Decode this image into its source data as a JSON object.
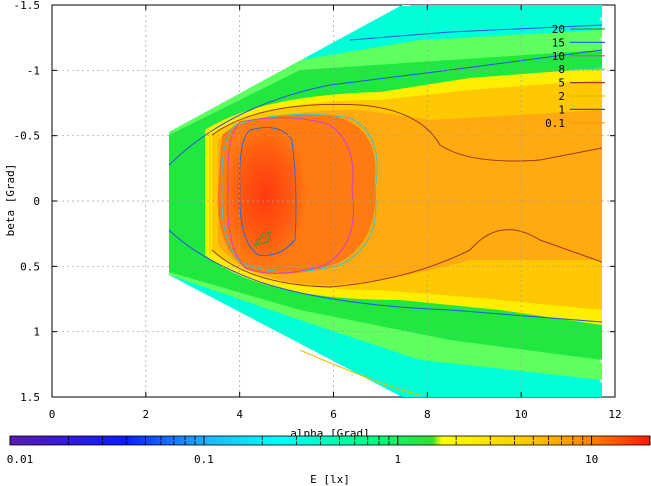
{
  "chart_data": {
    "type": "heatmap",
    "subtype": "contour",
    "title": "",
    "xlabel": "alpha [Grad]",
    "ylabel": "beta [Grad]",
    "xlim": [
      0,
      12
    ],
    "ylim": [
      1.5,
      -1.5
    ],
    "y_axis_inverted": true,
    "x_ticks": [
      "0",
      "2",
      "4",
      "6",
      "8",
      "10",
      "12"
    ],
    "y_ticks": [
      "-1.5",
      "-1",
      "-0.5",
      "0",
      "0.5",
      "1",
      "1.5"
    ],
    "grid": true,
    "colorbar": {
      "label": "E [lx]",
      "scale": "log",
      "range": [
        0.01,
        20
      ],
      "ticks": [
        "0.01",
        "0.1",
        "1",
        "10"
      ]
    },
    "legend_position": "top-right",
    "contour_levels": [
      {
        "label": "20",
        "color": "#3a9a3a"
      },
      {
        "label": "15",
        "color": "#2a6ad8"
      },
      {
        "label": "10",
        "color": "#d040d0"
      },
      {
        "label": "8",
        "color": "#30c8d0"
      },
      {
        "label": "5",
        "color": "#9b3a1a"
      },
      {
        "label": "2",
        "color": "#e0c000"
      },
      {
        "label": "1",
        "color": "#3050e0"
      },
      {
        "label": "0.1",
        "color": "#e8a000"
      }
    ],
    "field_region": {
      "alpha_start": 2.5,
      "alpha_end": 11.7,
      "beta_top_at_start": -0.5,
      "beta_bottom_at_start": 0.55,
      "beta_top_at_end": -1.5,
      "beta_bottom_at_end": 1.5
    },
    "peak": {
      "alpha": 4.5,
      "beta": 0.3,
      "value": 20
    }
  }
}
